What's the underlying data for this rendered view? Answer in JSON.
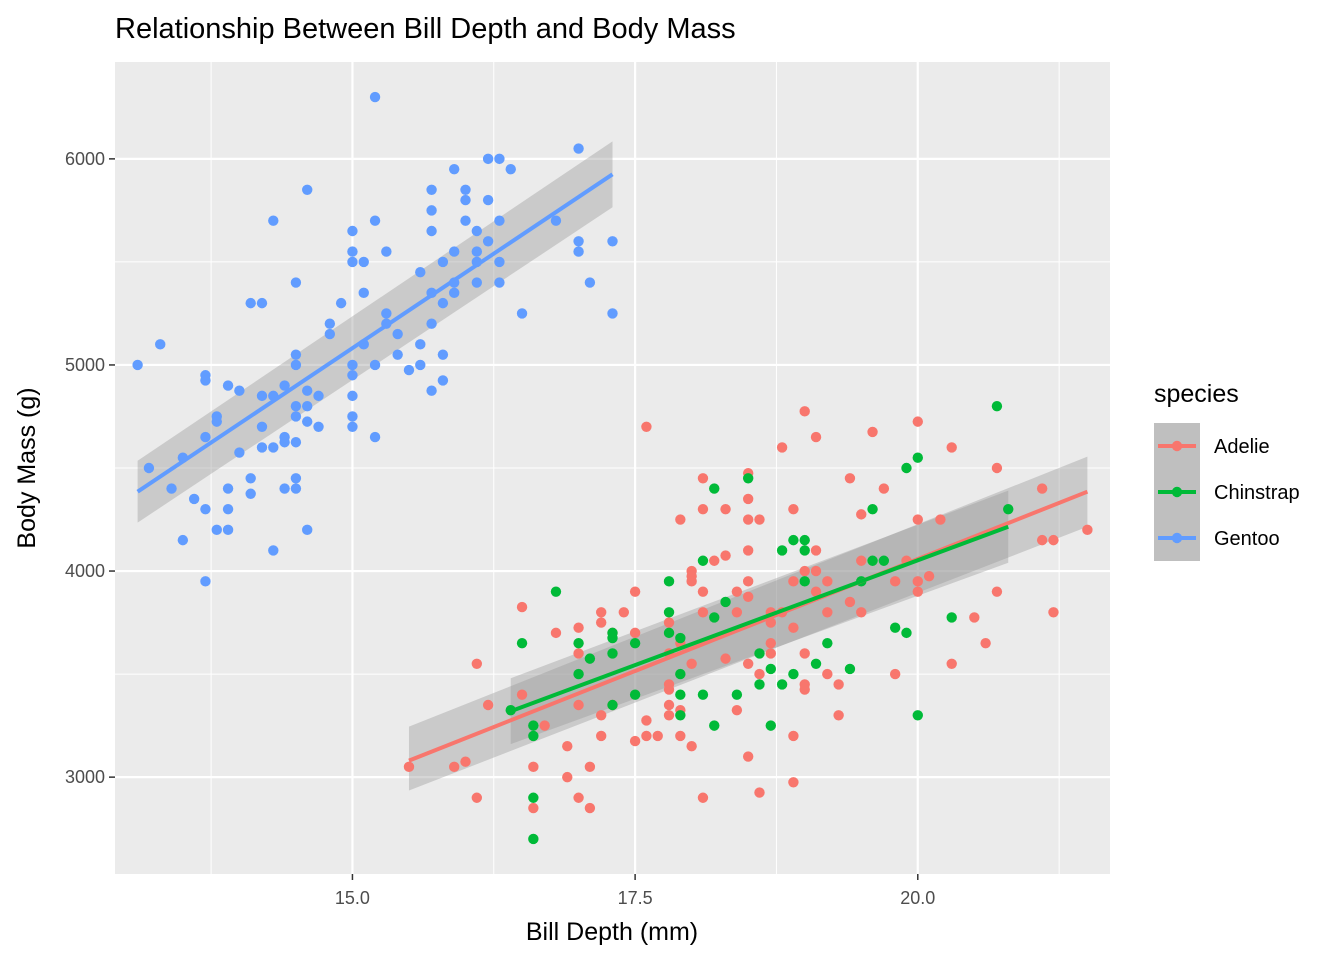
{
  "chart_data": {
    "type": "scatter",
    "title": "Relationship Between Bill Depth and Body Mass",
    "xlabel": "Bill Depth (mm)",
    "ylabel": "Body Mass (g)",
    "xlim": [
      12.9,
      21.7
    ],
    "ylim": [
      2530,
      6470
    ],
    "x_ticks": [
      15.0,
      17.5,
      20.0
    ],
    "x_tick_labels": [
      "15.0",
      "17.5",
      "20.0"
    ],
    "y_ticks": [
      3000,
      4000,
      5000,
      6000
    ],
    "y_tick_labels": [
      "3000",
      "4000",
      "5000",
      "6000"
    ],
    "grid": true,
    "legend": {
      "title": "species",
      "position": "right",
      "entries": [
        "Adelie",
        "Chinstrap",
        "Gentoo"
      ]
    },
    "colors": {
      "Adelie": "#F8766D",
      "Chinstrap": "#00BA38",
      "Gentoo": "#619CFF",
      "panel": "#EBEBEB",
      "band": "#999999"
    },
    "trendlines": [
      {
        "name": "Adelie",
        "x": [
          15.5,
          21.5
        ],
        "y": [
          3080,
          4385
        ],
        "ci_start": [
          2935,
          3245
        ],
        "ci_end": [
          4215,
          4555
        ]
      },
      {
        "name": "Chinstrap",
        "x": [
          16.4,
          20.8
        ],
        "y": [
          3320,
          4215
        ],
        "ci_start": [
          3160,
          3480
        ],
        "ci_end": [
          4040,
          4390
        ]
      },
      {
        "name": "Gentoo",
        "x": [
          13.1,
          17.3
        ],
        "y": [
          4385,
          5925
        ],
        "ci_start": [
          4235,
          4535
        ],
        "ci_end": [
          5765,
          6085
        ]
      }
    ],
    "series": [
      {
        "name": "Adelie",
        "points": [
          [
            15.5,
            3050
          ],
          [
            16.1,
            2900
          ],
          [
            16.2,
            3350
          ],
          [
            16.1,
            3550
          ],
          [
            15.9,
            3050
          ],
          [
            16.0,
            3075
          ],
          [
            16.5,
            3825
          ],
          [
            16.5,
            3400
          ],
          [
            16.6,
            3050
          ],
          [
            16.6,
            2850
          ],
          [
            16.7,
            3250
          ],
          [
            16.8,
            3700
          ],
          [
            16.9,
            3150
          ],
          [
            16.9,
            3000
          ],
          [
            17.0,
            3725
          ],
          [
            17.0,
            3350
          ],
          [
            17.0,
            2900
          ],
          [
            17.0,
            3600
          ],
          [
            17.1,
            3050
          ],
          [
            17.1,
            2850
          ],
          [
            17.2,
            3200
          ],
          [
            17.2,
            3300
          ],
          [
            17.2,
            3750
          ],
          [
            17.2,
            3800
          ],
          [
            17.3,
            3350
          ],
          [
            17.3,
            3700
          ],
          [
            17.4,
            3800
          ],
          [
            17.5,
            3900
          ],
          [
            17.5,
            3175
          ],
          [
            17.5,
            3700
          ],
          [
            17.6,
            3200
          ],
          [
            17.6,
            3275
          ],
          [
            17.6,
            4700
          ],
          [
            17.7,
            3200
          ],
          [
            17.8,
            3425
          ],
          [
            17.8,
            3350
          ],
          [
            17.8,
            3300
          ],
          [
            17.8,
            3450
          ],
          [
            17.8,
            3600
          ],
          [
            17.8,
            3750
          ],
          [
            17.9,
            3200
          ],
          [
            17.9,
            3325
          ],
          [
            17.9,
            3650
          ],
          [
            17.9,
            4250
          ],
          [
            18.0,
            3150
          ],
          [
            18.0,
            3975
          ],
          [
            18.0,
            3950
          ],
          [
            18.0,
            4000
          ],
          [
            18.0,
            3550
          ],
          [
            18.1,
            2900
          ],
          [
            18.1,
            3800
          ],
          [
            18.1,
            3900
          ],
          [
            18.1,
            4300
          ],
          [
            18.1,
            4450
          ],
          [
            18.2,
            4050
          ],
          [
            18.3,
            4075
          ],
          [
            18.3,
            4300
          ],
          [
            18.3,
            3575
          ],
          [
            18.4,
            3900
          ],
          [
            18.4,
            3325
          ],
          [
            18.4,
            3800
          ],
          [
            18.5,
            4350
          ],
          [
            18.5,
            4475
          ],
          [
            18.5,
            3100
          ],
          [
            18.5,
            3550
          ],
          [
            18.5,
            3875
          ],
          [
            18.5,
            4100
          ],
          [
            18.5,
            4250
          ],
          [
            18.5,
            3950
          ],
          [
            18.6,
            4250
          ],
          [
            18.6,
            3500
          ],
          [
            18.6,
            2925
          ],
          [
            18.7,
            3650
          ],
          [
            18.7,
            3800
          ],
          [
            18.7,
            3600
          ],
          [
            18.7,
            3750
          ],
          [
            18.8,
            4600
          ],
          [
            18.8,
            3800
          ],
          [
            18.9,
            4300
          ],
          [
            18.9,
            3200
          ],
          [
            18.9,
            3725
          ],
          [
            18.9,
            2975
          ],
          [
            18.9,
            3950
          ],
          [
            19.0,
            4775
          ],
          [
            19.0,
            3450
          ],
          [
            19.0,
            4000
          ],
          [
            19.0,
            3600
          ],
          [
            19.0,
            3425
          ],
          [
            19.1,
            4650
          ],
          [
            19.1,
            4000
          ],
          [
            19.1,
            3900
          ],
          [
            19.1,
            4100
          ],
          [
            19.2,
            3950
          ],
          [
            19.2,
            3500
          ],
          [
            19.2,
            3800
          ],
          [
            19.3,
            3450
          ],
          [
            19.3,
            3300
          ],
          [
            19.4,
            4450
          ],
          [
            19.4,
            3850
          ],
          [
            19.5,
            4050
          ],
          [
            19.5,
            4275
          ],
          [
            19.5,
            3800
          ],
          [
            19.6,
            4675
          ],
          [
            19.7,
            4400
          ],
          [
            19.8,
            3500
          ],
          [
            19.8,
            3950
          ],
          [
            19.9,
            4050
          ],
          [
            20.0,
            3900
          ],
          [
            20.0,
            3950
          ],
          [
            20.0,
            4725
          ],
          [
            20.0,
            4250
          ],
          [
            20.1,
            3975
          ],
          [
            20.2,
            4250
          ],
          [
            20.3,
            4600
          ],
          [
            20.3,
            3550
          ],
          [
            20.5,
            3775
          ],
          [
            20.6,
            3650
          ],
          [
            20.7,
            4500
          ],
          [
            20.7,
            3900
          ],
          [
            21.1,
            4400
          ],
          [
            21.1,
            4150
          ],
          [
            21.2,
            4150
          ],
          [
            21.2,
            3800
          ],
          [
            21.5,
            4200
          ]
        ]
      },
      {
        "name": "Chinstrap",
        "points": [
          [
            16.4,
            3325
          ],
          [
            16.5,
            3650
          ],
          [
            16.6,
            3250
          ],
          [
            16.6,
            3200
          ],
          [
            16.6,
            2700
          ],
          [
            16.6,
            2900
          ],
          [
            16.8,
            3900
          ],
          [
            17.0,
            3500
          ],
          [
            17.0,
            3650
          ],
          [
            17.1,
            3575
          ],
          [
            17.3,
            3350
          ],
          [
            17.3,
            3675
          ],
          [
            17.3,
            3600
          ],
          [
            17.3,
            3700
          ],
          [
            17.5,
            3650
          ],
          [
            17.5,
            3400
          ],
          [
            17.8,
            3950
          ],
          [
            17.8,
            3800
          ],
          [
            17.8,
            3700
          ],
          [
            17.9,
            3675
          ],
          [
            17.9,
            3300
          ],
          [
            17.9,
            3400
          ],
          [
            17.9,
            3500
          ],
          [
            18.1,
            3400
          ],
          [
            18.1,
            4050
          ],
          [
            18.2,
            3775
          ],
          [
            18.2,
            3250
          ],
          [
            18.2,
            4400
          ],
          [
            18.3,
            3850
          ],
          [
            18.4,
            3400
          ],
          [
            18.5,
            4450
          ],
          [
            18.6,
            3450
          ],
          [
            18.6,
            3600
          ],
          [
            18.7,
            3250
          ],
          [
            18.7,
            3525
          ],
          [
            18.8,
            4100
          ],
          [
            18.8,
            3450
          ],
          [
            18.9,
            4150
          ],
          [
            18.9,
            3500
          ],
          [
            19.0,
            4150
          ],
          [
            19.0,
            4100
          ],
          [
            19.0,
            3950
          ],
          [
            19.1,
            3550
          ],
          [
            19.2,
            3650
          ],
          [
            19.4,
            3525
          ],
          [
            19.5,
            3950
          ],
          [
            19.6,
            4300
          ],
          [
            19.6,
            4050
          ],
          [
            19.7,
            4050
          ],
          [
            19.8,
            3725
          ],
          [
            19.9,
            4500
          ],
          [
            19.9,
            3700
          ],
          [
            20.0,
            4550
          ],
          [
            20.0,
            3300
          ],
          [
            20.3,
            3775
          ],
          [
            20.7,
            4800
          ],
          [
            20.8,
            4300
          ]
        ]
      },
      {
        "name": "Gentoo",
        "points": [
          [
            13.1,
            5000
          ],
          [
            13.2,
            4500
          ],
          [
            13.3,
            5100
          ],
          [
            13.4,
            4400
          ],
          [
            13.5,
            4550
          ],
          [
            13.5,
            4150
          ],
          [
            13.6,
            4350
          ],
          [
            13.7,
            4300
          ],
          [
            13.7,
            4650
          ],
          [
            13.7,
            4950
          ],
          [
            13.7,
            4925
          ],
          [
            13.7,
            3950
          ],
          [
            13.8,
            4750
          ],
          [
            13.8,
            4725
          ],
          [
            13.8,
            4200
          ],
          [
            13.9,
            4200
          ],
          [
            13.9,
            4300
          ],
          [
            13.9,
            4400
          ],
          [
            13.9,
            4900
          ],
          [
            14.0,
            4875
          ],
          [
            14.0,
            4575
          ],
          [
            14.1,
            4375
          ],
          [
            14.1,
            5300
          ],
          [
            14.1,
            4450
          ],
          [
            14.2,
            5300
          ],
          [
            14.2,
            4850
          ],
          [
            14.2,
            4700
          ],
          [
            14.2,
            4600
          ],
          [
            14.3,
            5700
          ],
          [
            14.3,
            4100
          ],
          [
            14.3,
            4850
          ],
          [
            14.3,
            4600
          ],
          [
            14.4,
            4900
          ],
          [
            14.4,
            4625
          ],
          [
            14.4,
            4650
          ],
          [
            14.4,
            4400
          ],
          [
            14.5,
            4400
          ],
          [
            14.5,
            4450
          ],
          [
            14.5,
            4800
          ],
          [
            14.5,
            4750
          ],
          [
            14.5,
            4625
          ],
          [
            14.5,
            5400
          ],
          [
            14.5,
            5000
          ],
          [
            14.5,
            5050
          ],
          [
            14.6,
            4800
          ],
          [
            14.6,
            4875
          ],
          [
            14.6,
            4725
          ],
          [
            14.6,
            4200
          ],
          [
            14.6,
            5850
          ],
          [
            14.7,
            4700
          ],
          [
            14.7,
            4850
          ],
          [
            14.8,
            5200
          ],
          [
            14.8,
            5150
          ],
          [
            14.9,
            5300
          ],
          [
            15.0,
            5650
          ],
          [
            15.0,
            5550
          ],
          [
            15.0,
            5500
          ],
          [
            15.0,
            4950
          ],
          [
            15.0,
            5000
          ],
          [
            15.0,
            4750
          ],
          [
            15.0,
            4700
          ],
          [
            15.0,
            4850
          ],
          [
            15.1,
            5500
          ],
          [
            15.1,
            5350
          ],
          [
            15.1,
            5100
          ],
          [
            15.2,
            6300
          ],
          [
            15.2,
            5700
          ],
          [
            15.2,
            5000
          ],
          [
            15.2,
            4650
          ],
          [
            15.3,
            5550
          ],
          [
            15.3,
            5200
          ],
          [
            15.3,
            5250
          ],
          [
            15.4,
            5150
          ],
          [
            15.4,
            5050
          ],
          [
            15.5,
            4975
          ],
          [
            15.6,
            5450
          ],
          [
            15.6,
            5100
          ],
          [
            15.6,
            5000
          ],
          [
            15.7,
            5350
          ],
          [
            15.7,
            5750
          ],
          [
            15.7,
            5850
          ],
          [
            15.7,
            5650
          ],
          [
            15.7,
            5200
          ],
          [
            15.7,
            4875
          ],
          [
            15.8,
            5300
          ],
          [
            15.8,
            5050
          ],
          [
            15.8,
            5500
          ],
          [
            15.8,
            4925
          ],
          [
            15.9,
            5950
          ],
          [
            15.9,
            5350
          ],
          [
            15.9,
            5400
          ],
          [
            15.9,
            5550
          ],
          [
            16.0,
            5850
          ],
          [
            16.0,
            5700
          ],
          [
            16.0,
            5800
          ],
          [
            16.1,
            5650
          ],
          [
            16.1,
            5550
          ],
          [
            16.1,
            5500
          ],
          [
            16.1,
            5400
          ],
          [
            16.2,
            6000
          ],
          [
            16.2,
            5800
          ],
          [
            16.2,
            5600
          ],
          [
            16.3,
            6000
          ],
          [
            16.3,
            5700
          ],
          [
            16.3,
            5500
          ],
          [
            16.3,
            5400
          ],
          [
            16.4,
            5950
          ],
          [
            16.5,
            5250
          ],
          [
            16.8,
            5700
          ],
          [
            17.0,
            6050
          ],
          [
            17.0,
            5600
          ],
          [
            17.0,
            5550
          ],
          [
            17.1,
            5400
          ],
          [
            17.3,
            5250
          ],
          [
            17.3,
            5600
          ]
        ]
      }
    ]
  }
}
